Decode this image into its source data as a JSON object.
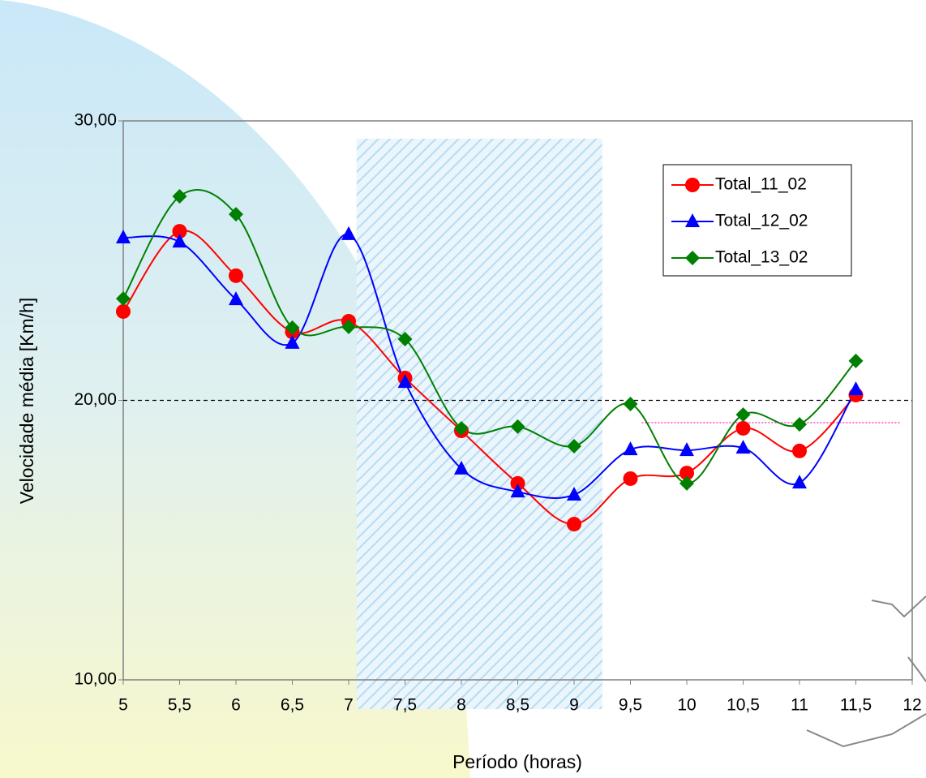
{
  "chart_data": {
    "type": "line",
    "smooth": true,
    "x_label": "Período (horas)",
    "y_label": "Velocidade média [Km/h]",
    "x": [
      5,
      5.5,
      6,
      6.5,
      7,
      7.5,
      8,
      8.5,
      9,
      9.5,
      10,
      10.5,
      11,
      11.5
    ],
    "series": [
      {
        "name": "Total_11_02",
        "color": "#ff0000",
        "marker": "circle",
        "values": [
          23.18,
          26.05,
          24.46,
          22.45,
          22.83,
          20.8,
          18.91,
          17.03,
          15.57,
          17.2,
          17.4,
          19.0,
          18.19,
          20.19
        ]
      },
      {
        "name": "Total_12_02",
        "color": "#0000ff",
        "marker": "triangle",
        "values": [
          25.82,
          25.67,
          23.61,
          22.05,
          25.94,
          20.65,
          17.55,
          16.73,
          16.62,
          18.24,
          18.21,
          18.3,
          17.05,
          20.39
        ]
      },
      {
        "name": "Total_13_02",
        "color": "#008000",
        "marker": "diamond",
        "values": [
          23.64,
          27.3,
          26.66,
          22.6,
          22.63,
          22.19,
          19.0,
          19.06,
          18.36,
          19.87,
          17.03,
          19.49,
          19.14,
          21.41
        ]
      }
    ],
    "xlim": [
      5,
      12
    ],
    "xticks": [
      5,
      {
        "value": 5.5,
        "label": "5,5"
      },
      6,
      {
        "value": 6.5,
        "label": "6,5"
      },
      7,
      {
        "value": 7.5,
        "label": "7,5"
      },
      8,
      {
        "value": 8.5,
        "label": "8,5"
      },
      9,
      {
        "value": 9.5,
        "label": "9,5"
      },
      10,
      {
        "value": 10.5,
        "label": "10,5"
      },
      11,
      {
        "value": 11.5,
        "label": "11,5"
      },
      12
    ],
    "ylim": [
      10,
      30
    ],
    "yticks": [
      {
        "value": 10,
        "label": "10,00"
      },
      {
        "value": 20,
        "label": "20,00"
      },
      {
        "value": 30,
        "label": "30,00"
      }
    ],
    "shaded_span": [
      7.07,
      9.25
    ],
    "hlines": [
      {
        "value": 20,
        "color": "#000000",
        "style": "dashed"
      },
      {
        "value": 19.2,
        "color": "#ff44cc",
        "style": "dotted",
        "from": 9.6,
        "to": 11.9
      }
    ],
    "legend": "upper right"
  }
}
